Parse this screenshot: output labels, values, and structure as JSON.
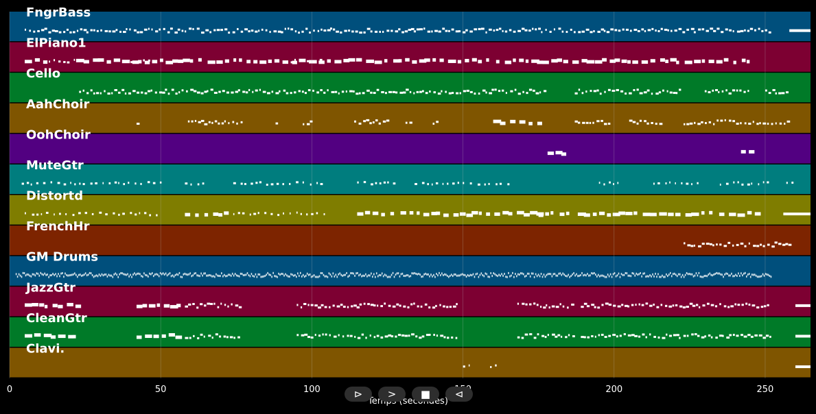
{
  "tracks": [
    {
      "name": "FngrBass",
      "color": "#004f7c"
    },
    {
      "name": "ElPiano1",
      "color": "#7d0032"
    },
    {
      "name": "Cello",
      "color": "#007a28"
    },
    {
      "name": "AahChoir",
      "color": "#7f5500"
    },
    {
      "name": "OohChoir",
      "color": "#520081"
    },
    {
      "name": "MuteGtr",
      "color": "#007d7e"
    },
    {
      "name": "Distortd",
      "color": "#7f7d00"
    },
    {
      "name": "FrenchHr",
      "color": "#7d2400"
    },
    {
      "name": "GM Drums",
      "color": "#004f7c"
    },
    {
      "name": "JazzGtr",
      "color": "#7d0032"
    },
    {
      "name": "CleanGtr",
      "color": "#007a28"
    },
    {
      "name": "Clavi.",
      "color": "#7f5500"
    }
  ],
  "axis": {
    "xlabel": "Temps (secondes)",
    "xlim": [
      0,
      265
    ],
    "ticks": [
      0,
      50,
      100,
      150,
      200,
      250
    ]
  },
  "note_color": "#ffffff",
  "grid_color": "#bbbbbb",
  "activity": {
    "FngrBass": [
      [
        5,
        252,
        "dense"
      ],
      [
        258,
        265,
        "long"
      ]
    ],
    "ElPiano1": [
      [
        5,
        12,
        "block"
      ],
      [
        13,
        22,
        "sparse"
      ],
      [
        22,
        245,
        "block"
      ],
      [
        40,
        48,
        "sparse"
      ],
      [
        93,
        103,
        "sparse"
      ]
    ],
    "Cello": [
      [
        23,
        177,
        "dense"
      ],
      [
        187,
        222,
        "dense"
      ],
      [
        230,
        245,
        "dense"
      ],
      [
        250,
        258,
        "dense"
      ]
    ],
    "AahChoir": [
      [
        42,
        43,
        "dense"
      ],
      [
        59,
        77,
        "dense"
      ],
      [
        88,
        89,
        "dense"
      ],
      [
        97,
        100,
        "dense"
      ],
      [
        114,
        125,
        "dense"
      ],
      [
        131,
        133,
        "dense"
      ],
      [
        140,
        142,
        "dense"
      ],
      [
        160,
        175,
        "block"
      ],
      [
        187,
        198,
        "dense"
      ],
      [
        205,
        216,
        "dense"
      ],
      [
        223,
        258,
        "dense"
      ]
    ],
    "OohChoir": [
      [
        178,
        183,
        "block"
      ],
      [
        242,
        247,
        "block"
      ]
    ],
    "MuteGtr": [
      [
        4,
        22,
        "sparse"
      ],
      [
        23,
        50,
        "sparse"
      ],
      [
        58,
        66,
        "sparse"
      ],
      [
        74,
        104,
        "sparse"
      ],
      [
        115,
        128,
        "sparse"
      ],
      [
        134,
        166,
        "sparse"
      ],
      [
        195,
        202,
        "sparse"
      ],
      [
        213,
        228,
        "sparse"
      ],
      [
        235,
        252,
        "sparse"
      ],
      [
        257,
        259,
        "sparse"
      ]
    ],
    "Distortd": [
      [
        5,
        50,
        "sparse"
      ],
      [
        58,
        72,
        "block"
      ],
      [
        74,
        104,
        "sparse"
      ],
      [
        115,
        140,
        "block"
      ],
      [
        141,
        175,
        "block"
      ],
      [
        175,
        187,
        "block"
      ],
      [
        188,
        249,
        "block"
      ],
      [
        256,
        265,
        "long"
      ]
    ],
    "FrenchHr": [
      [
        223,
        258,
        "dense"
      ]
    ],
    "GM Drums": [
      [
        2,
        252,
        "drums"
      ]
    ],
    "JazzGtr": [
      [
        5,
        22,
        "block"
      ],
      [
        42,
        57,
        "block"
      ],
      [
        58,
        76,
        "dense"
      ],
      [
        95,
        148,
        "dense"
      ],
      [
        168,
        187,
        "dense"
      ],
      [
        189,
        252,
        "dense"
      ],
      [
        260,
        265,
        "long"
      ]
    ],
    "CleanGtr": [
      [
        5,
        22,
        "block"
      ],
      [
        42,
        57,
        "block"
      ],
      [
        58,
        76,
        "dense"
      ],
      [
        95,
        148,
        "dense"
      ],
      [
        168,
        187,
        "dense"
      ],
      [
        189,
        252,
        "dense"
      ],
      [
        260,
        265,
        "long"
      ]
    ],
    "Clavi.": [
      [
        150,
        152,
        "sparse"
      ],
      [
        159,
        161,
        "sparse"
      ],
      [
        260,
        265,
        "long"
      ]
    ]
  },
  "controls": [
    {
      "name": "play-forward",
      "glyph": "⊳"
    },
    {
      "name": "next",
      "glyph": ">"
    },
    {
      "name": "stop",
      "glyph": "■"
    },
    {
      "name": "previous",
      "glyph": "⊲"
    }
  ]
}
